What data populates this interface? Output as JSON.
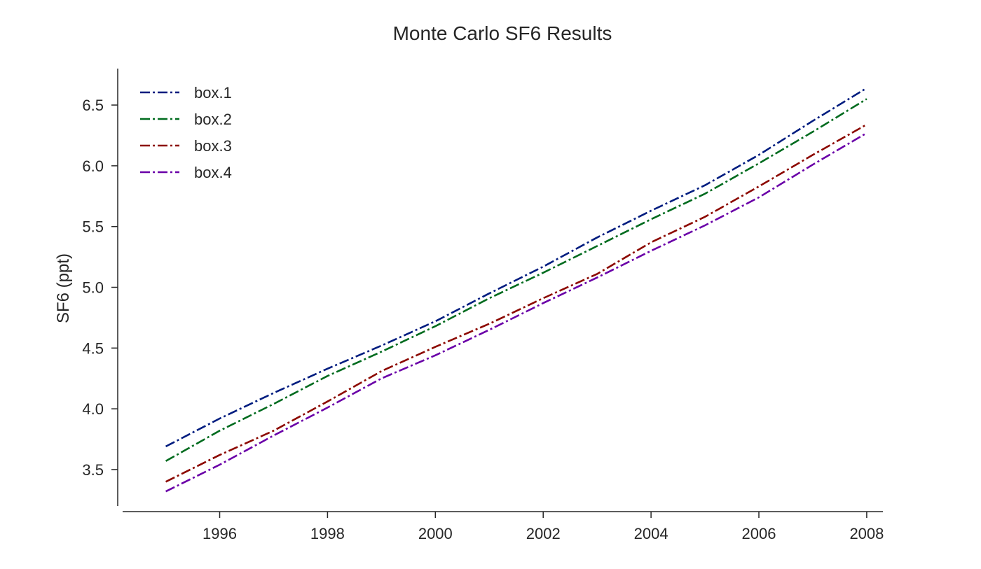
{
  "chart_data": {
    "type": "line",
    "title": "Monte Carlo SF6 Results",
    "xlabel": "",
    "ylabel": "SF6 (ppt)",
    "x": [
      1995,
      1996,
      1997,
      1998,
      1999,
      2000,
      2001,
      2002,
      2003,
      2004,
      2005,
      2006,
      2007,
      2008
    ],
    "xlim": [
      1994.2,
      2008.3
    ],
    "ylim": [
      3.2,
      6.8
    ],
    "xticks": [
      1996,
      1998,
      2000,
      2002,
      2004,
      2006,
      2008
    ],
    "yticks": [
      3.5,
      4.0,
      4.5,
      5.0,
      5.5,
      6.0,
      6.5
    ],
    "xtick_labels": [
      "1996",
      "1998",
      "2000",
      "2002",
      "2004",
      "2006",
      "2008"
    ],
    "ytick_labels": [
      "3.5",
      "4.0",
      "4.5",
      "5.0",
      "5.5",
      "6.0",
      "6.5"
    ],
    "grid": false,
    "legend_position": "top-left",
    "series": [
      {
        "name": "box.1",
        "color": "#001c7f",
        "values": [
          3.69,
          3.92,
          4.13,
          4.33,
          4.52,
          4.72,
          4.95,
          5.17,
          5.41,
          5.63,
          5.84,
          6.09,
          6.37,
          6.64
        ]
      },
      {
        "name": "box.2",
        "color": "#006b1e",
        "values": [
          3.57,
          3.82,
          4.04,
          4.27,
          4.47,
          4.68,
          4.91,
          5.12,
          5.34,
          5.56,
          5.77,
          6.02,
          6.28,
          6.55
        ]
      },
      {
        "name": "box.3",
        "color": "#8c0800",
        "values": [
          3.4,
          3.62,
          3.82,
          4.06,
          4.31,
          4.51,
          4.7,
          4.91,
          5.11,
          5.37,
          5.58,
          5.83,
          6.09,
          6.34
        ]
      },
      {
        "name": "box.4",
        "color": "#6a00a8",
        "values": [
          3.32,
          3.54,
          3.78,
          4.01,
          4.25,
          4.44,
          4.65,
          4.87,
          5.08,
          5.3,
          5.51,
          5.74,
          6.01,
          6.27
        ]
      }
    ]
  }
}
